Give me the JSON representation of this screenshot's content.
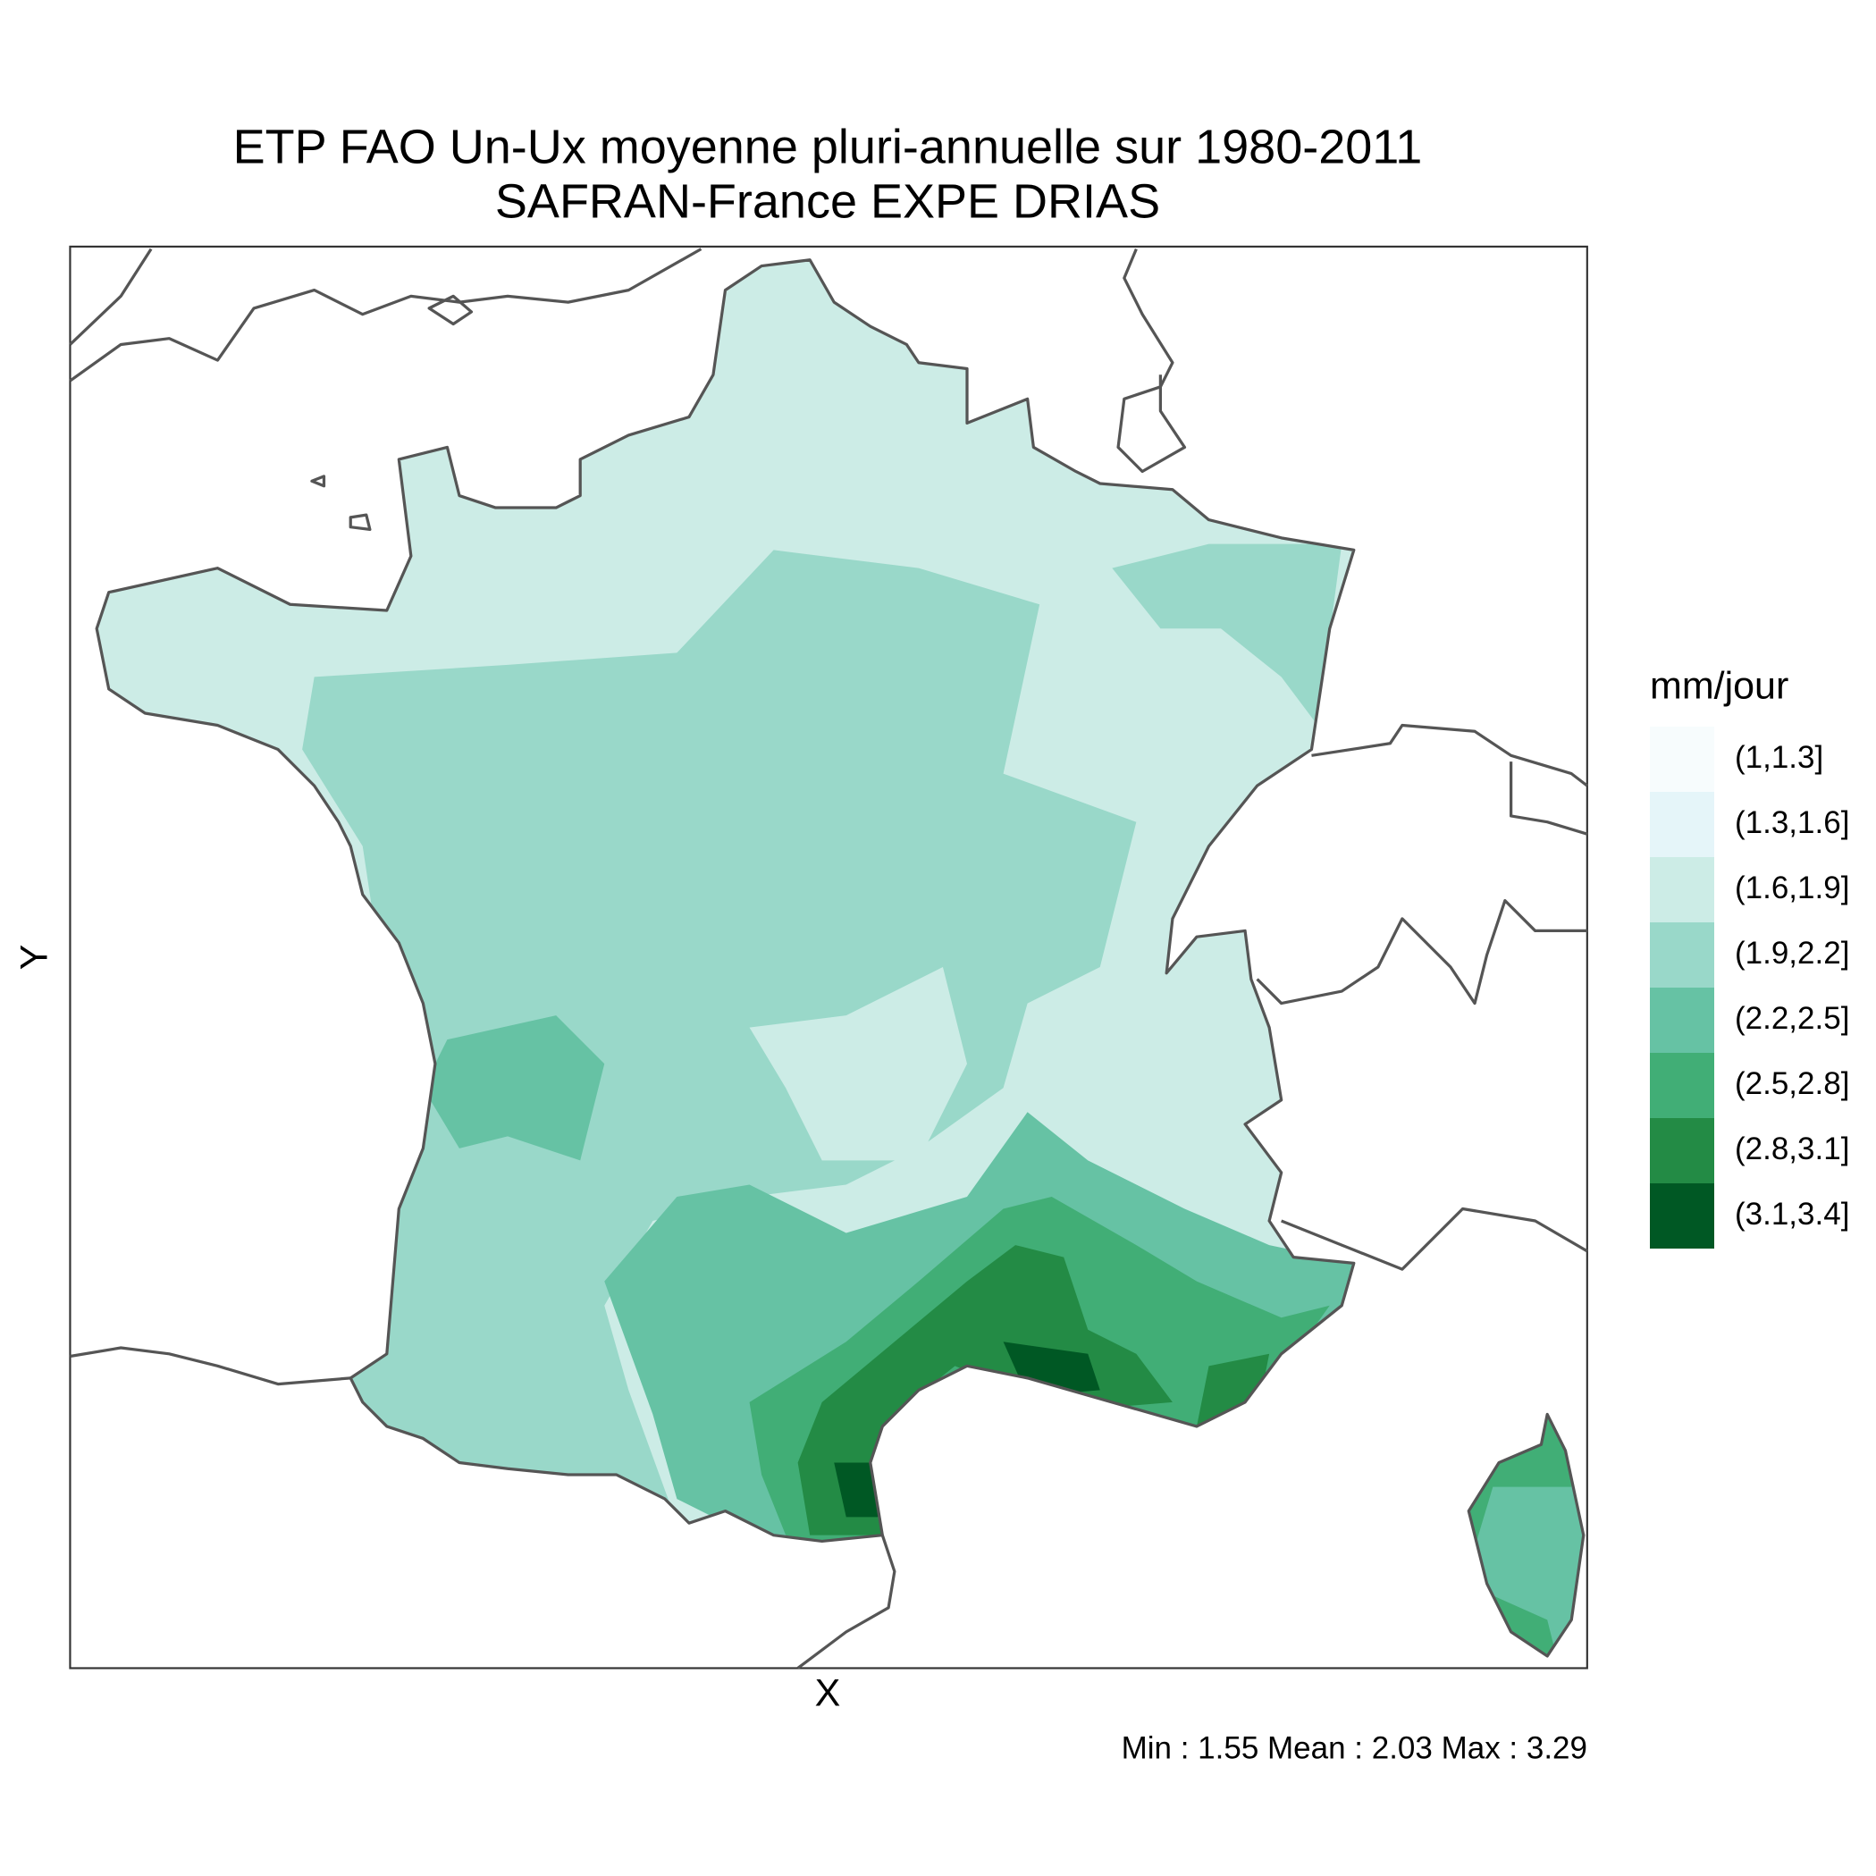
{
  "title": [
    "ETP FAO Un-Ux moyenne pluri-annuelle sur 1980-2011",
    "SAFRAN-France EXPE DRIAS"
  ],
  "x_label": "X",
  "y_label": "Y",
  "legend": {
    "title": "mm/jour",
    "items": [
      {
        "label": "(1,1.3]",
        "color": "#f7fcfd"
      },
      {
        "label": "(1.3,1.6]",
        "color": "#e5f5f9"
      },
      {
        "label": "(1.6,1.9]",
        "color": "#ccece6"
      },
      {
        "label": "(1.9,2.2]",
        "color": "#99d8c9"
      },
      {
        "label": "(2.2,2.5]",
        "color": "#66c2a4"
      },
      {
        "label": "(2.5,2.8]",
        "color": "#41ae76"
      },
      {
        "label": "(2.8,3.1]",
        "color": "#238b45"
      },
      {
        "label": "(3.1,3.4]",
        "color": "#005824"
      }
    ]
  },
  "footer": "Min : 1.55 Mean : 2.03 Max : 3.29"
}
